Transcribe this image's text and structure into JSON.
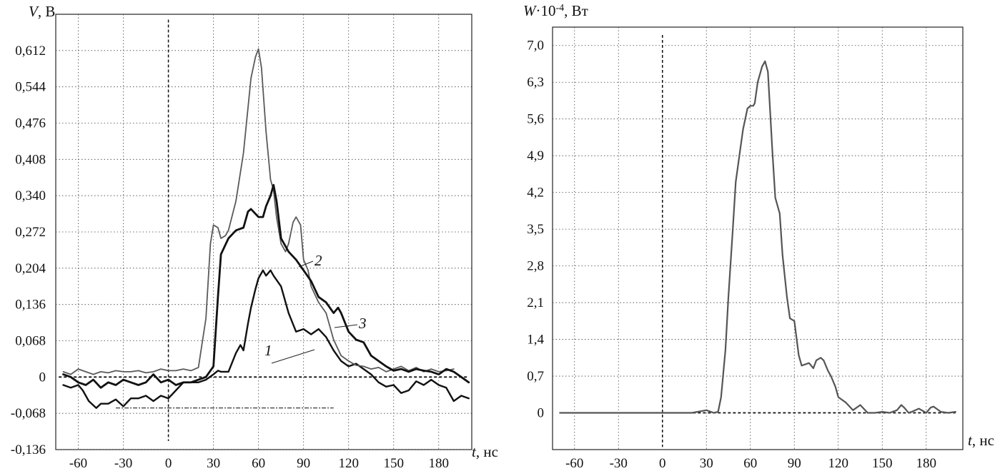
{
  "chart_data": [
    {
      "type": "line",
      "ylabel_var": "V",
      "ylabel_unit": ", В",
      "xlabel_var": "t",
      "xlabel_unit": ", нс",
      "xlim": [
        -75,
        202
      ],
      "ylim": [
        -0.136,
        0.68
      ],
      "xticks": [
        -60,
        -30,
        0,
        30,
        60,
        90,
        120,
        150,
        180
      ],
      "xtick_labels": [
        "-60",
        "-30",
        "0",
        "30",
        "60",
        "90",
        "120",
        "150",
        "180"
      ],
      "yticks": [
        -0.136,
        -0.068,
        0,
        0.068,
        0.136,
        0.204,
        0.272,
        0.34,
        0.408,
        0.476,
        0.544,
        0.612
      ],
      "ytick_labels": [
        "-0,136",
        "-0,068",
        "0",
        "0,068",
        "0,136",
        "0,204",
        "0,272",
        "0,340",
        "0,408",
        "0,476",
        "0,544",
        "0,612"
      ],
      "grid": true,
      "series": [
        {
          "name": "1",
          "color": "#111111",
          "x": [
            -70,
            -65,
            -60,
            -57,
            -53,
            -48,
            -45,
            -40,
            -35,
            -30,
            -25,
            -20,
            -15,
            -10,
            -5,
            0,
            5,
            10,
            15,
            20,
            25,
            30,
            33,
            35,
            40,
            45,
            48,
            50,
            53,
            55,
            58,
            60,
            63,
            65,
            68,
            70,
            75,
            80,
            85,
            90,
            95,
            100,
            105,
            110,
            115,
            120,
            125,
            130,
            135,
            140,
            145,
            150,
            155,
            160,
            165,
            170,
            175,
            180,
            185,
            190,
            195,
            200
          ],
          "y": [
            -0.015,
            -0.02,
            -0.015,
            -0.025,
            -0.045,
            -0.058,
            -0.05,
            -0.05,
            -0.042,
            -0.055,
            -0.04,
            -0.04,
            -0.035,
            -0.045,
            -0.035,
            -0.04,
            -0.025,
            -0.01,
            -0.01,
            -0.01,
            -0.005,
            0.005,
            0.012,
            0.01,
            0.01,
            0.045,
            0.06,
            0.05,
            0.1,
            0.13,
            0.165,
            0.185,
            0.2,
            0.19,
            0.2,
            0.19,
            0.17,
            0.12,
            0.085,
            0.09,
            0.08,
            0.09,
            0.075,
            0.05,
            0.03,
            0.02,
            0.025,
            0.015,
            0.005,
            -0.01,
            -0.018,
            -0.015,
            -0.03,
            -0.025,
            -0.008,
            -0.015,
            -0.005,
            -0.015,
            -0.02,
            -0.045,
            -0.035,
            -0.04
          ]
        },
        {
          "name": "2",
          "color": "#5a5a5a",
          "x": [
            -70,
            -65,
            -60,
            -55,
            -50,
            -45,
            -40,
            -35,
            -30,
            -25,
            -20,
            -15,
            -10,
            -5,
            0,
            5,
            10,
            15,
            20,
            25,
            28,
            30,
            33,
            35,
            38,
            40,
            45,
            50,
            55,
            58,
            60,
            62,
            65,
            68,
            70,
            72,
            75,
            78,
            80,
            83,
            85,
            88,
            90,
            93,
            95,
            100,
            105,
            110,
            115,
            120,
            125,
            130,
            135,
            140,
            145,
            150,
            155,
            160,
            165,
            170,
            175,
            180,
            185,
            190
          ],
          "y": [
            0.01,
            0.005,
            0.015,
            0.01,
            0.005,
            0.01,
            0.008,
            0.012,
            0.01,
            0.01,
            0.012,
            0.008,
            0.01,
            0.015,
            0.012,
            0.012,
            0.015,
            0.012,
            0.018,
            0.11,
            0.25,
            0.285,
            0.28,
            0.26,
            0.265,
            0.275,
            0.33,
            0.42,
            0.56,
            0.6,
            0.615,
            0.58,
            0.46,
            0.37,
            0.35,
            0.3,
            0.25,
            0.235,
            0.25,
            0.29,
            0.3,
            0.285,
            0.22,
            0.2,
            0.17,
            0.14,
            0.12,
            0.07,
            0.04,
            0.03,
            0.022,
            0.02,
            0.015,
            0.018,
            0.01,
            0.015,
            0.02,
            0.012,
            0.018,
            0.01,
            0.015,
            0.01,
            0.012,
            0.015
          ]
        },
        {
          "name": "3",
          "color": "#111111",
          "x": [
            -70,
            -65,
            -60,
            -55,
            -50,
            -45,
            -40,
            -35,
            -30,
            -25,
            -20,
            -15,
            -10,
            -5,
            0,
            5,
            10,
            15,
            20,
            25,
            30,
            33,
            35,
            40,
            45,
            50,
            53,
            55,
            60,
            63,
            65,
            68,
            70,
            72,
            75,
            80,
            85,
            90,
            95,
            100,
            105,
            110,
            113,
            115,
            120,
            125,
            130,
            135,
            140,
            145,
            150,
            155,
            160,
            165,
            170,
            175,
            180,
            185,
            190,
            195,
            200
          ],
          "y": [
            0.005,
            0.0,
            -0.01,
            -0.015,
            -0.005,
            -0.02,
            -0.01,
            -0.015,
            -0.005,
            -0.01,
            -0.015,
            -0.01,
            0.005,
            -0.01,
            -0.005,
            -0.015,
            -0.01,
            -0.01,
            -0.005,
            0.0,
            0.02,
            0.15,
            0.23,
            0.26,
            0.275,
            0.28,
            0.31,
            0.315,
            0.3,
            0.3,
            0.32,
            0.34,
            0.36,
            0.33,
            0.26,
            0.235,
            0.22,
            0.2,
            0.18,
            0.15,
            0.14,
            0.12,
            0.13,
            0.12,
            0.085,
            0.07,
            0.065,
            0.04,
            0.03,
            0.02,
            0.012,
            0.015,
            0.01,
            0.015,
            0.012,
            0.01,
            0.005,
            0.015,
            0.01,
            0.0,
            -0.01
          ]
        }
      ],
      "annotations": [
        "1",
        "2",
        "3"
      ]
    },
    {
      "type": "line",
      "ylabel_var": "W",
      "ylabel_unit": "·10",
      "ylabel_exp": "-4",
      "ylabel_unit2": ", Вт",
      "xlabel_var": "t",
      "xlabel_unit": ", нс",
      "xlim": [
        -75,
        205
      ],
      "ylim": [
        -0.7,
        7.35
      ],
      "xticks": [
        -60,
        -30,
        0,
        30,
        60,
        90,
        120,
        150,
        180
      ],
      "xtick_labels": [
        "-60",
        "-30",
        "0",
        "30",
        "60",
        "90",
        "120",
        "150",
        "180"
      ],
      "yticks": [
        0,
        0.7,
        1.4,
        2.1,
        2.8,
        3.5,
        4.2,
        4.9,
        5.6,
        6.3,
        7.0
      ],
      "ytick_labels": [
        "0",
        "0,7",
        "1,4",
        "2,1",
        "2,8",
        "3,5",
        "4,2",
        "4,9",
        "5,6",
        "6,3",
        "7,0"
      ],
      "grid": true,
      "series": [
        {
          "name": "",
          "color": "#555555",
          "x": [
            -70,
            -60,
            -40,
            -20,
            0,
            20,
            30,
            35,
            38,
            40,
            43,
            45,
            48,
            50,
            53,
            55,
            58,
            60,
            62,
            63,
            65,
            68,
            70,
            72,
            75,
            77,
            80,
            82,
            85,
            87,
            90,
            93,
            95,
            100,
            103,
            105,
            108,
            110,
            113,
            115,
            118,
            120,
            125,
            130,
            135,
            140,
            145,
            150,
            155,
            160,
            163,
            165,
            168,
            170,
            175,
            180,
            183,
            185,
            190,
            195,
            200
          ],
          "y": [
            0.0,
            0.0,
            0.0,
            0.0,
            0.0,
            0.0,
            0.05,
            0.0,
            0.02,
            0.3,
            1.2,
            2.2,
            3.5,
            4.4,
            5.0,
            5.4,
            5.8,
            5.85,
            5.85,
            5.9,
            6.3,
            6.6,
            6.7,
            6.5,
            5.0,
            4.1,
            3.8,
            3.0,
            2.2,
            1.8,
            1.75,
            1.1,
            0.9,
            0.95,
            0.85,
            1.0,
            1.05,
            1.0,
            0.8,
            0.7,
            0.5,
            0.3,
            0.2,
            0.05,
            0.15,
            0.0,
            0.0,
            0.02,
            0.0,
            0.05,
            0.15,
            0.1,
            0.0,
            0.02,
            0.08,
            0.0,
            0.1,
            0.12,
            0.02,
            0.0,
            0.02
          ]
        }
      ]
    }
  ]
}
